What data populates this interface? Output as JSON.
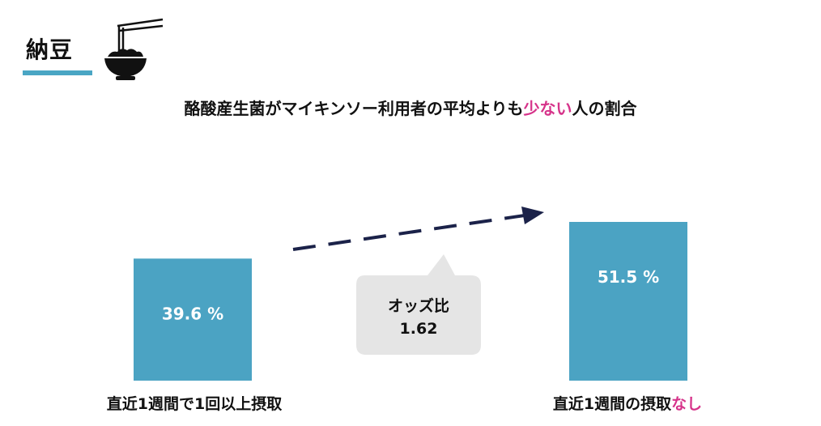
{
  "header": {
    "title": "納豆",
    "subtitle_pre": "酪酸産生菌がマイキンソー利用者の平均よりも",
    "subtitle_accent": "少ない",
    "subtitle_post": "人の割合"
  },
  "odds": {
    "label": "オッズ比",
    "value": "1.62"
  },
  "colors": {
    "bar": "#4ba3c3",
    "accent": "#d6338a",
    "arrow": "#1b2249",
    "bubble": "#e5e5e5",
    "underline": "#4aa6c4"
  },
  "chart_data": {
    "type": "bar",
    "categories": [
      "直近1週間で1回以上摂取",
      "直近1週間の摂取なし"
    ],
    "category_parts": [
      {
        "pre": "直近1週間で1回以上摂取",
        "accent": ""
      },
      {
        "pre": "直近1週間の摂取",
        "accent": "なし"
      }
    ],
    "values": [
      39.6,
      51.5
    ],
    "value_labels": [
      "39.6 %",
      "51.5 %"
    ],
    "unit": "%",
    "title": "酪酸産生菌がマイキンソー利用者の平均よりも少ない人の割合",
    "xlabel": "",
    "ylabel": "",
    "ylim": [
      0,
      60
    ],
    "grid": false,
    "legend": "none"
  }
}
